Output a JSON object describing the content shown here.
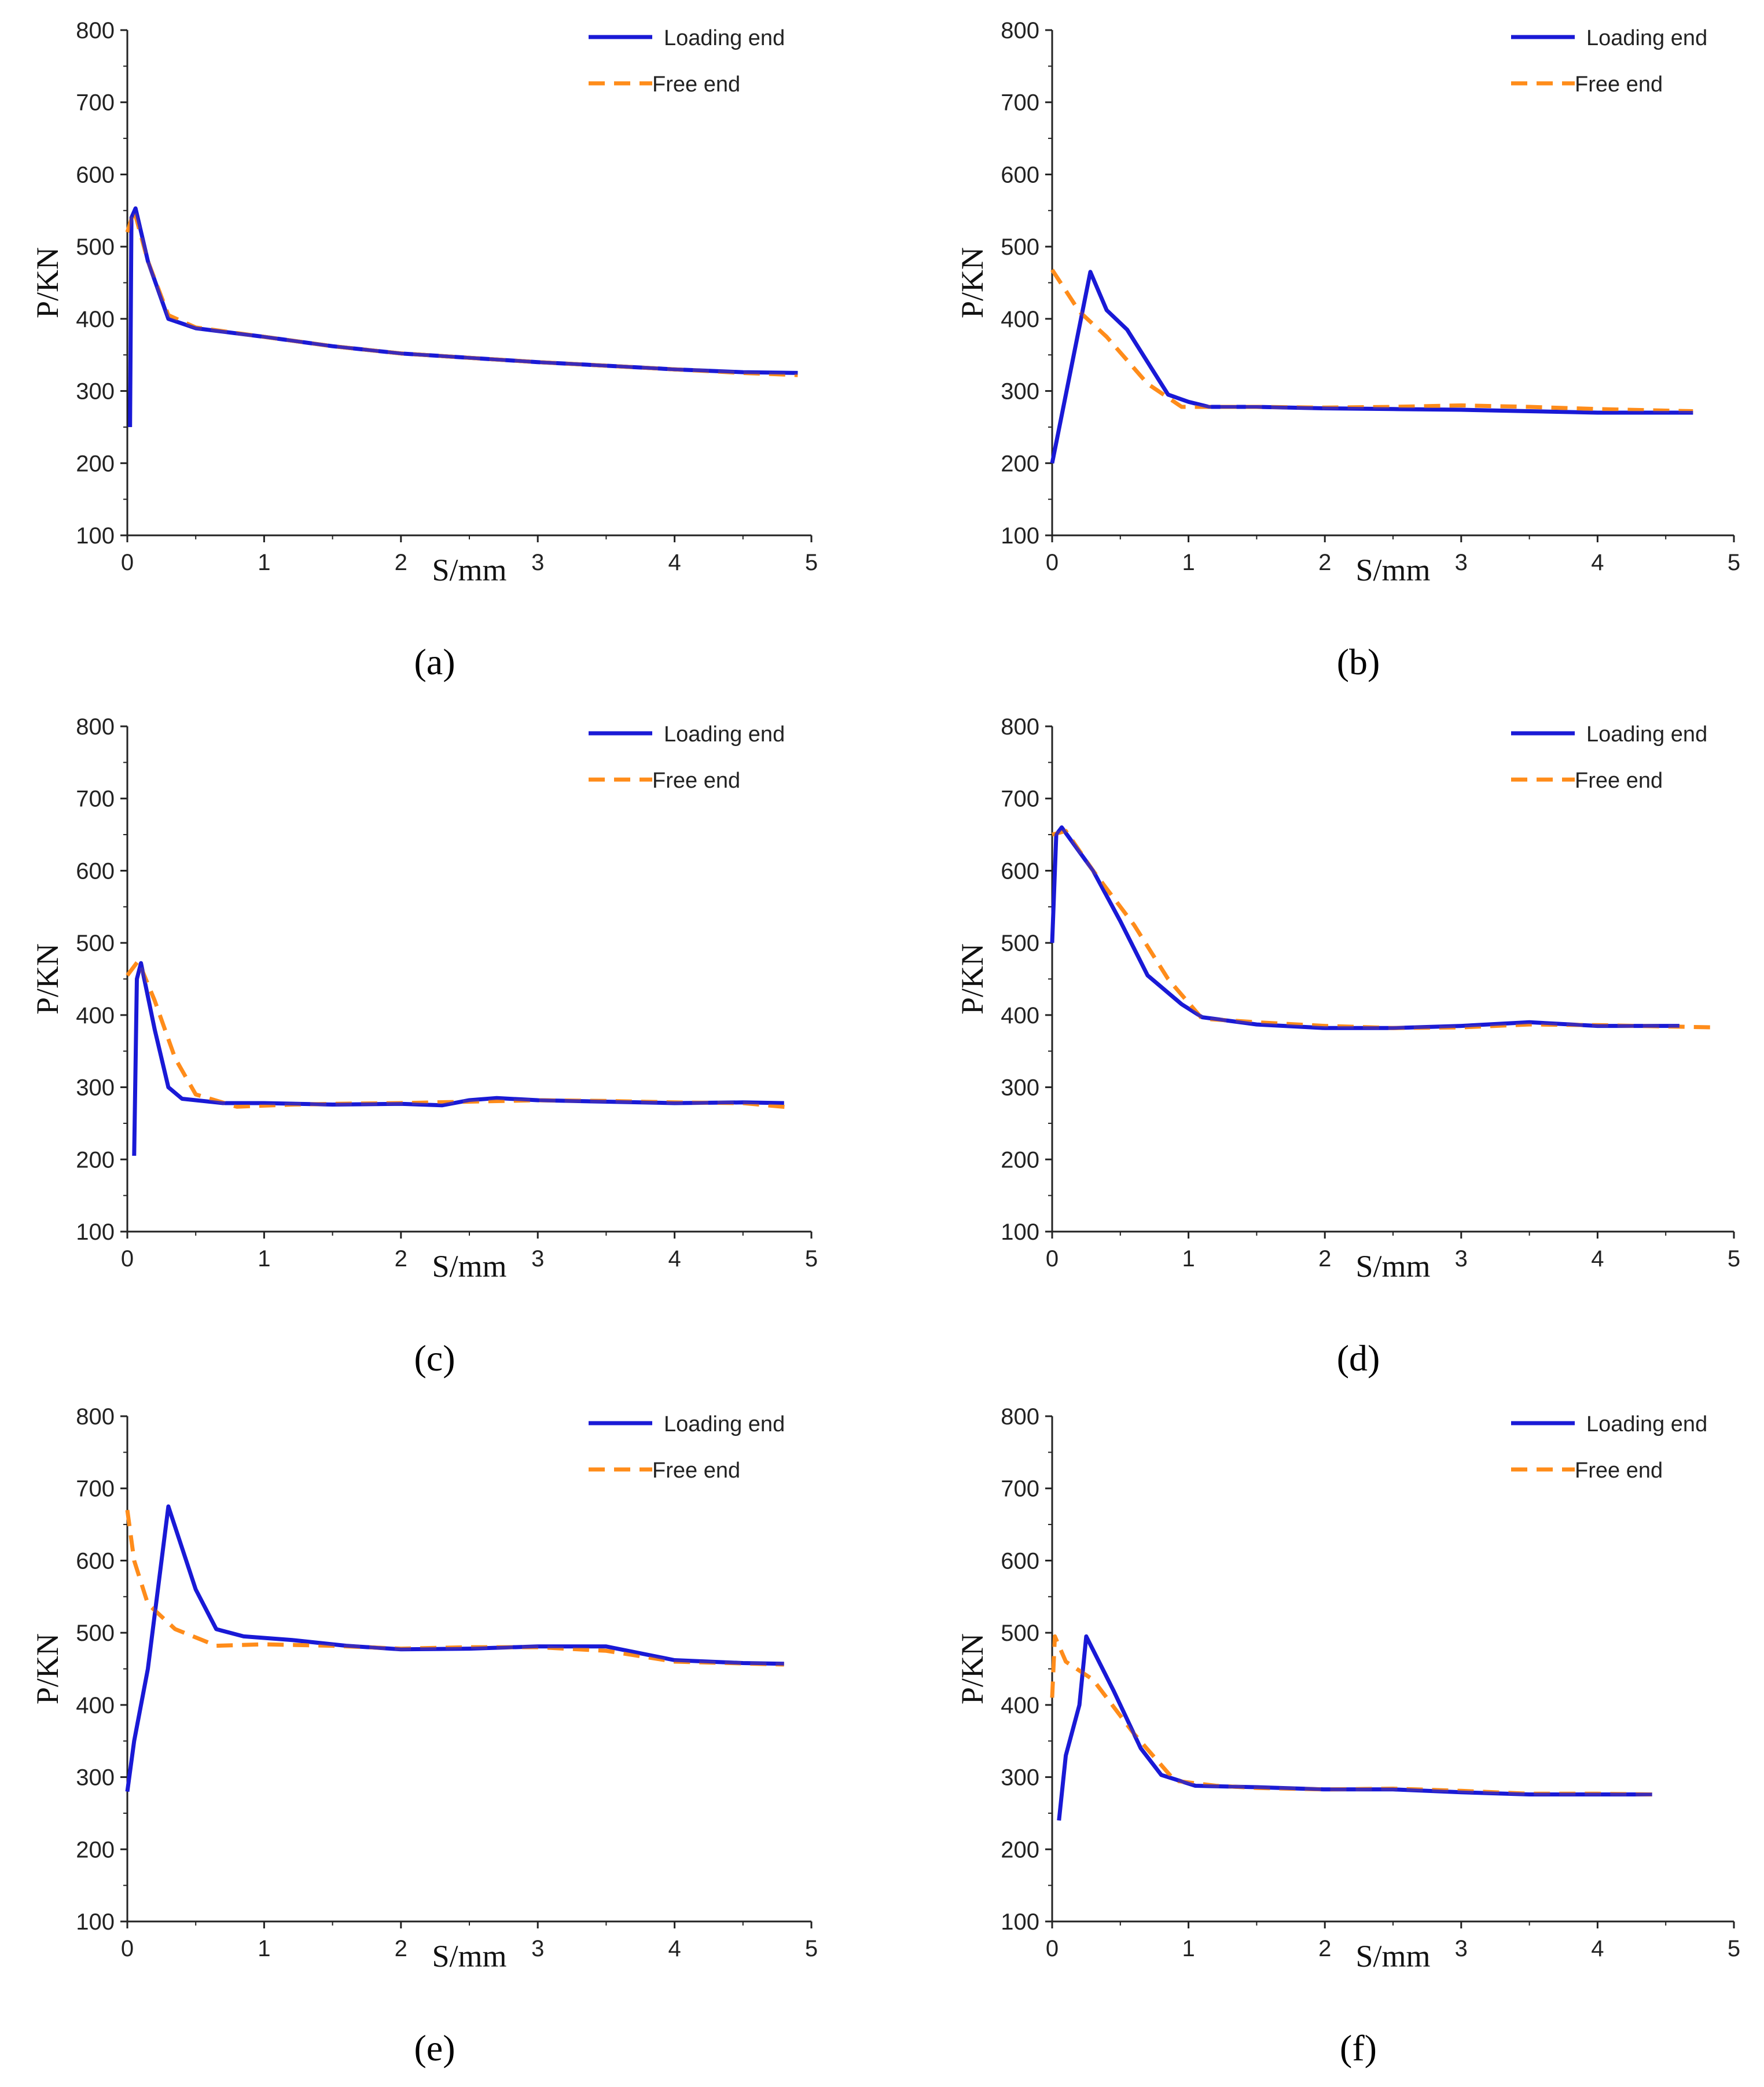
{
  "colors": {
    "loading": "#1a1ad6",
    "free": "#ff8c1a",
    "axis": "#222222"
  },
  "chart_data": [
    {
      "type": "line",
      "caption": "(a)",
      "caption_letter": "a",
      "xlabel": "S/mm",
      "ylabel": "P/KN",
      "xlim": [
        0,
        5
      ],
      "ylim": [
        100,
        800
      ],
      "xticks": [
        0,
        1,
        2,
        3,
        4,
        5
      ],
      "yticks": [
        100,
        200,
        300,
        400,
        500,
        600,
        700,
        800
      ],
      "legend": [
        "Loading end",
        "Free end"
      ],
      "series": [
        {
          "name": "Loading end",
          "points": [
            [
              0.02,
              250
            ],
            [
              0.03,
              540
            ],
            [
              0.06,
              553
            ],
            [
              0.15,
              480
            ],
            [
              0.3,
              400
            ],
            [
              0.5,
              387
            ],
            [
              1,
              375
            ],
            [
              1.5,
              362
            ],
            [
              2,
              352
            ],
            [
              2.5,
              346
            ],
            [
              3,
              340
            ],
            [
              3.5,
              335
            ],
            [
              4,
              330
            ],
            [
              4.5,
              326
            ],
            [
              4.9,
              325
            ]
          ]
        },
        {
          "name": "Free end",
          "points": [
            [
              0,
              520
            ],
            [
              0.05,
              550
            ],
            [
              0.15,
              480
            ],
            [
              0.3,
              405
            ],
            [
              0.5,
              388
            ],
            [
              1,
              375
            ],
            [
              1.5,
              362
            ],
            [
              2,
              352
            ],
            [
              2.5,
              346
            ],
            [
              3,
              340
            ],
            [
              3.5,
              335
            ],
            [
              4,
              330
            ],
            [
              4.5,
              325
            ],
            [
              4.9,
              322
            ]
          ]
        }
      ]
    },
    {
      "type": "line",
      "caption": "(b)",
      "caption_letter": "b",
      "xlabel": "S/mm",
      "ylabel": "P/KN",
      "xlim": [
        0,
        5
      ],
      "ylim": [
        100,
        800
      ],
      "xticks": [
        0,
        1,
        2,
        3,
        4,
        5
      ],
      "yticks": [
        100,
        200,
        300,
        400,
        500,
        600,
        700,
        800
      ],
      "legend": [
        "Loading end",
        "Free end"
      ],
      "series": [
        {
          "name": "Loading end",
          "points": [
            [
              0,
              200
            ],
            [
              0.28,
              465
            ],
            [
              0.4,
              412
            ],
            [
              0.55,
              385
            ],
            [
              0.85,
              295
            ],
            [
              1,
              285
            ],
            [
              1.15,
              278
            ],
            [
              1.5,
              278
            ],
            [
              2,
              276
            ],
            [
              2.5,
              275
            ],
            [
              3,
              274
            ],
            [
              3.5,
              272
            ],
            [
              4,
              270
            ],
            [
              4.7,
              270
            ]
          ]
        },
        {
          "name": "Free end",
          "points": [
            [
              0,
              468
            ],
            [
              0.2,
              410
            ],
            [
              0.4,
              375
            ],
            [
              0.7,
              310
            ],
            [
              0.95,
              278
            ],
            [
              1.5,
              278
            ],
            [
              2,
              277
            ],
            [
              2.5,
              278
            ],
            [
              3,
              280
            ],
            [
              3.5,
              278
            ],
            [
              4,
              275
            ],
            [
              4.7,
              272
            ]
          ]
        }
      ]
    },
    {
      "type": "line",
      "caption": "(c)",
      "caption_letter": "c",
      "xlabel": "S/mm",
      "ylabel": "P/KN",
      "xlim": [
        0,
        5
      ],
      "ylim": [
        100,
        800
      ],
      "xticks": [
        0,
        1,
        2,
        3,
        4,
        5
      ],
      "yticks": [
        100,
        200,
        300,
        400,
        500,
        600,
        700,
        800
      ],
      "legend": [
        "Loading end",
        "Free end"
      ],
      "series": [
        {
          "name": "Loading end",
          "points": [
            [
              0.05,
              205
            ],
            [
              0.07,
              450
            ],
            [
              0.1,
              472
            ],
            [
              0.2,
              380
            ],
            [
              0.3,
              300
            ],
            [
              0.4,
              284
            ],
            [
              0.7,
              278
            ],
            [
              1,
              278
            ],
            [
              1.5,
              276
            ],
            [
              2,
              277
            ],
            [
              2.3,
              275
            ],
            [
              2.5,
              282
            ],
            [
              2.7,
              285
            ],
            [
              3,
              282
            ],
            [
              3.5,
              280
            ],
            [
              4,
              278
            ],
            [
              4.5,
              279
            ],
            [
              4.8,
              278
            ]
          ]
        },
        {
          "name": "Free end",
          "points": [
            [
              0,
              455
            ],
            [
              0.08,
              475
            ],
            [
              0.2,
              420
            ],
            [
              0.35,
              340
            ],
            [
              0.5,
              290
            ],
            [
              0.8,
              273
            ],
            [
              1.2,
              276
            ],
            [
              1.5,
              277
            ],
            [
              2,
              278
            ],
            [
              2.5,
              280
            ],
            [
              3,
              282
            ],
            [
              3.5,
              281
            ],
            [
              4,
              279
            ],
            [
              4.5,
              278
            ],
            [
              4.85,
              272
            ]
          ]
        }
      ]
    },
    {
      "type": "line",
      "caption": "(d)",
      "caption_letter": "d",
      "xlabel": "S/mm",
      "ylabel": "P/KN",
      "xlim": [
        0,
        5
      ],
      "ylim": [
        100,
        800
      ],
      "xticks": [
        0,
        1,
        2,
        3,
        4,
        5
      ],
      "yticks": [
        100,
        200,
        300,
        400,
        500,
        600,
        700,
        800
      ],
      "legend": [
        "Loading end",
        "Free end"
      ],
      "series": [
        {
          "name": "Loading end",
          "points": [
            [
              0,
              500
            ],
            [
              0.03,
              650
            ],
            [
              0.07,
              660
            ],
            [
              0.3,
              600
            ],
            [
              0.5,
              530
            ],
            [
              0.7,
              455
            ],
            [
              0.95,
              415
            ],
            [
              1.1,
              397
            ],
            [
              1.5,
              387
            ],
            [
              2,
              382
            ],
            [
              2.5,
              382
            ],
            [
              3,
              385
            ],
            [
              3.5,
              390
            ],
            [
              4,
              385
            ],
            [
              4.6,
              385
            ]
          ]
        },
        {
          "name": "Free end",
          "points": [
            [
              0,
              650
            ],
            [
              0.1,
              655
            ],
            [
              0.3,
              600
            ],
            [
              0.6,
              525
            ],
            [
              0.85,
              450
            ],
            [
              1.1,
              395
            ],
            [
              1.5,
              390
            ],
            [
              2,
              385
            ],
            [
              2.5,
              382
            ],
            [
              3,
              383
            ],
            [
              3.5,
              387
            ],
            [
              4,
              386
            ],
            [
              4.85,
              383
            ]
          ]
        }
      ]
    },
    {
      "type": "line",
      "caption": "(e)",
      "caption_letter": "e",
      "xlabel": "S/mm",
      "ylabel": "P/KN",
      "xlim": [
        0,
        5
      ],
      "ylim": [
        100,
        800
      ],
      "xticks": [
        0,
        1,
        2,
        3,
        4,
        5
      ],
      "yticks": [
        100,
        200,
        300,
        400,
        500,
        600,
        700,
        800
      ],
      "legend": [
        "Loading end",
        "Free end"
      ],
      "series": [
        {
          "name": "Loading end",
          "points": [
            [
              0,
              280
            ],
            [
              0.05,
              350
            ],
            [
              0.15,
              450
            ],
            [
              0.3,
              675
            ],
            [
              0.5,
              560
            ],
            [
              0.65,
              505
            ],
            [
              0.85,
              495
            ],
            [
              1.2,
              490
            ],
            [
              1.6,
              482
            ],
            [
              2,
              477
            ],
            [
              2.5,
              478
            ],
            [
              3,
              481
            ],
            [
              3.5,
              481
            ],
            [
              4,
              462
            ],
            [
              4.5,
              458
            ],
            [
              4.8,
              457
            ]
          ]
        },
        {
          "name": "Free end",
          "points": [
            [
              0,
              670
            ],
            [
              0.05,
              600
            ],
            [
              0.15,
              540
            ],
            [
              0.35,
              505
            ],
            [
              0.65,
              482
            ],
            [
              1,
              484
            ],
            [
              1.5,
              482
            ],
            [
              2,
              478
            ],
            [
              2.5,
              480
            ],
            [
              3,
              480
            ],
            [
              3.5,
              475
            ],
            [
              4,
              460
            ],
            [
              4.8,
              456
            ]
          ]
        }
      ]
    },
    {
      "type": "line",
      "caption": "(f)",
      "caption_letter": "f",
      "xlabel": "S/mm",
      "ylabel": "P/KN",
      "xlim": [
        0,
        5
      ],
      "ylim": [
        100,
        800
      ],
      "xticks": [
        0,
        1,
        2,
        3,
        4,
        5
      ],
      "yticks": [
        100,
        200,
        300,
        400,
        500,
        600,
        700,
        800
      ],
      "legend": [
        "Loading end",
        "Free end"
      ],
      "series": [
        {
          "name": "Loading end",
          "points": [
            [
              0.05,
              240
            ],
            [
              0.1,
              330
            ],
            [
              0.2,
              400
            ],
            [
              0.25,
              495
            ],
            [
              0.45,
              420
            ],
            [
              0.65,
              340
            ],
            [
              0.8,
              303
            ],
            [
              1.05,
              288
            ],
            [
              1.5,
              286
            ],
            [
              2,
              283
            ],
            [
              2.5,
              283
            ],
            [
              3,
              279
            ],
            [
              3.5,
              276
            ],
            [
              4,
              276
            ],
            [
              4.4,
              276
            ]
          ]
        },
        {
          "name": "Free end",
          "points": [
            [
              0,
              410
            ],
            [
              0.02,
              495
            ],
            [
              0.1,
              460
            ],
            [
              0.3,
              435
            ],
            [
              0.6,
              360
            ],
            [
              0.9,
              295
            ],
            [
              1.2,
              288
            ],
            [
              1.5,
              285
            ],
            [
              2,
              283
            ],
            [
              2.5,
              284
            ],
            [
              3,
              281
            ],
            [
              3.5,
              277
            ],
            [
              4,
              277
            ],
            [
              4.4,
              276
            ]
          ]
        }
      ]
    }
  ]
}
